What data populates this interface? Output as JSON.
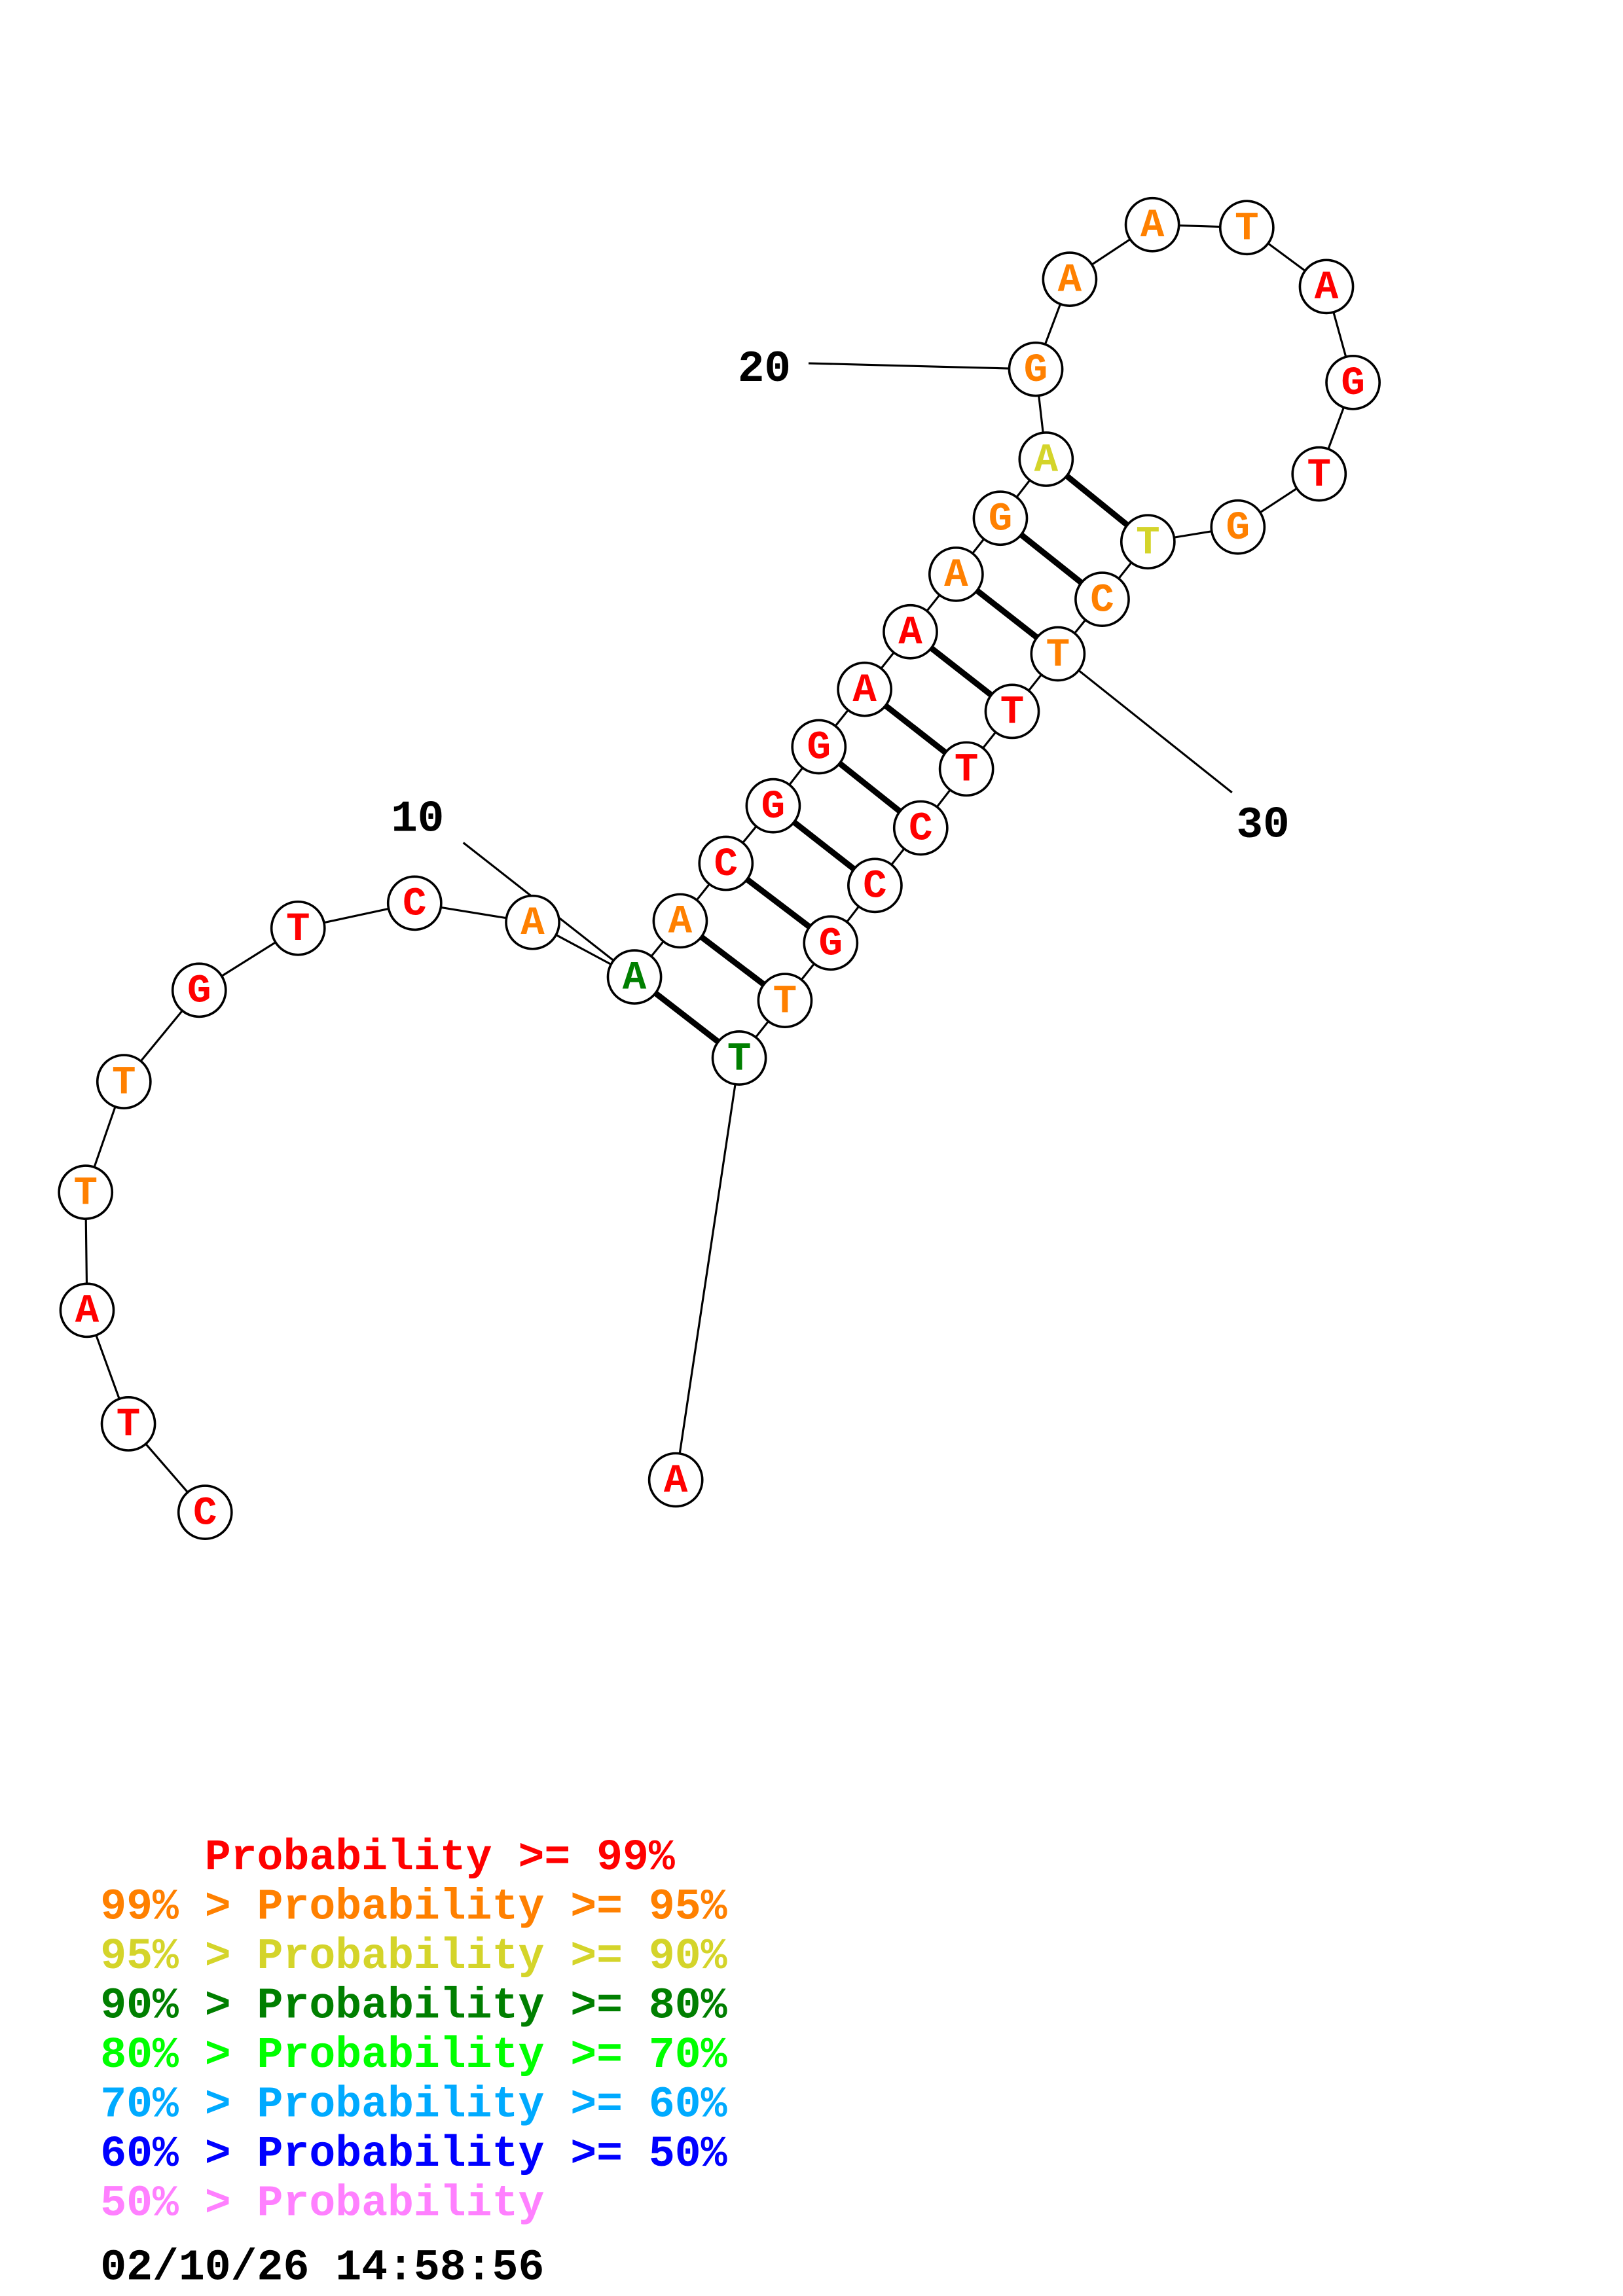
{
  "structure": {
    "sequence": [
      "C",
      "T",
      "A",
      "T",
      "T",
      "G",
      "T",
      "C",
      "A",
      "A",
      "A",
      "C",
      "G",
      "G",
      "A",
      "A",
      "A",
      "G",
      "A",
      "G",
      "A",
      "A",
      "T",
      "A",
      "G",
      "T",
      "G",
      "T",
      "C",
      "T",
      "T",
      "T",
      "C",
      "C",
      "G",
      "T",
      "T",
      "A"
    ],
    "probability_class": [
      "p99",
      "p99",
      "p99",
      "p95",
      "p95",
      "p99",
      "p99",
      "p99",
      "p95",
      "p80",
      "p95",
      "p99",
      "p99",
      "p99",
      "p99",
      "p99",
      "p95",
      "p95",
      "p90",
      "p95",
      "p95",
      "p95",
      "p95",
      "p99",
      "p99",
      "p99",
      "p95",
      "p90",
      "p95",
      "p95",
      "p99",
      "p99",
      "p99",
      "p99",
      "p99",
      "p95",
      "p80",
      "p99"
    ],
    "pairs": [
      [
        10,
        37
      ],
      [
        11,
        36
      ],
      [
        12,
        35
      ],
      [
        13,
        34
      ],
      [
        14,
        33
      ],
      [
        15,
        32
      ],
      [
        16,
        31
      ],
      [
        17,
        30
      ],
      [
        18,
        29
      ],
      [
        19,
        28
      ]
    ],
    "position_labels": [
      {
        "text": "10",
        "index": 10
      },
      {
        "text": "20",
        "index": 20
      },
      {
        "text": "30",
        "index": 30
      }
    ]
  },
  "colors": {
    "p99": "#ff0000",
    "p95": "#ff8000",
    "p90": "#d4d42a",
    "p80": "#007f00",
    "p70": "#00ff00",
    "p60": "#00aaff",
    "p50": "#0000ff",
    "plow": "#ff80ff"
  },
  "legend": [
    {
      "text": "    Probability >= 99%",
      "class": "p99"
    },
    {
      "text": "99% > Probability >= 95%",
      "class": "p95"
    },
    {
      "text": "95% > Probability >= 90%",
      "class": "p90"
    },
    {
      "text": "90% > Probability >= 80%",
      "class": "p80"
    },
    {
      "text": "80% > Probability >= 70%",
      "class": "p70"
    },
    {
      "text": "70% > Probability >= 60%",
      "class": "p60"
    },
    {
      "text": "60% > Probability >= 50%",
      "class": "p50"
    },
    {
      "text": "50% > Probability",
      "class": "plow"
    }
  ],
  "timestamp": "02/10/26 14:58:56"
}
